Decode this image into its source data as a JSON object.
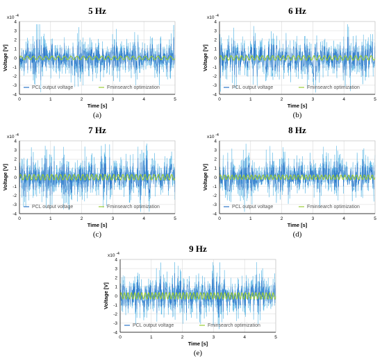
{
  "colors": {
    "signal": "#2a74c8",
    "signal_light": "#38a8e0",
    "fit": "#9acd32",
    "grid": "#d9d9d9"
  },
  "chart_data": [
    {
      "type": "line",
      "caption": "(a)",
      "title": "5 Hz",
      "xlabel": "Time [s]",
      "ylabel": "Voltage [V]",
      "y_multiplier": "x10",
      "y_exponent": "-4",
      "xlim": [
        0,
        5
      ],
      "ylim": [
        -4,
        4
      ],
      "xticks": [
        "0",
        "1",
        "2",
        "3",
        "4",
        "5"
      ],
      "yticks": [
        "4",
        "3",
        "2",
        "1",
        "0",
        "-1",
        "-2",
        "-3",
        "-4"
      ],
      "grid": true,
      "legend_position": "bottom",
      "series": [
        {
          "name": "PCL output voltage",
          "kind": "noise",
          "amplitude": 2.0
        },
        {
          "name": "Fminsearch optimization",
          "kind": "sine",
          "frequency": 5,
          "amplitude": 0.2
        }
      ]
    },
    {
      "type": "line",
      "caption": "(b)",
      "title": "6 Hz",
      "xlabel": "Time [s]",
      "ylabel": "Voltage [V]",
      "y_multiplier": "x10",
      "y_exponent": "-4",
      "xlim": [
        0,
        5
      ],
      "ylim": [
        -4,
        4
      ],
      "xticks": [
        "0",
        "1",
        "2",
        "3",
        "4",
        "5"
      ],
      "yticks": [
        "4",
        "3",
        "2",
        "1",
        "0",
        "-1",
        "-2",
        "-3",
        "-4"
      ],
      "grid": true,
      "legend_position": "bottom",
      "series": [
        {
          "name": "PCL output voltage",
          "kind": "noise",
          "amplitude": 2.2
        },
        {
          "name": "Fminsearch optimization",
          "kind": "sine",
          "frequency": 6,
          "amplitude": 0.25
        }
      ]
    },
    {
      "type": "line",
      "caption": "(c)",
      "title": "7 Hz",
      "xlabel": "Time [s]",
      "ylabel": "Voltage [V]",
      "y_multiplier": "x10",
      "y_exponent": "-4",
      "xlim": [
        0,
        5
      ],
      "ylim": [
        -4,
        4
      ],
      "xticks": [
        "0",
        "1",
        "2",
        "3",
        "4",
        "5"
      ],
      "yticks": [
        "4",
        "3",
        "2",
        "1",
        "0",
        "-1",
        "-2",
        "-3",
        "-4"
      ],
      "grid": true,
      "legend_position": "bottom",
      "series": [
        {
          "name": "PCL output voltage",
          "kind": "noise",
          "amplitude": 2.3
        },
        {
          "name": "Fminsearch optimization",
          "kind": "sine",
          "frequency": 7,
          "amplitude": 0.3
        }
      ]
    },
    {
      "type": "line",
      "caption": "(d)",
      "title": "8 Hz",
      "xlabel": "Time [s]",
      "ylabel": "Voltage [V]",
      "y_multiplier": "x10",
      "y_exponent": "-4",
      "xlim": [
        0,
        5
      ],
      "ylim": [
        -4,
        4
      ],
      "xticks": [
        "0",
        "1",
        "2",
        "3",
        "4",
        "5"
      ],
      "yticks": [
        "4",
        "3",
        "2",
        "1",
        "0",
        "-1",
        "-2",
        "-3",
        "-4"
      ],
      "grid": true,
      "legend_position": "bottom",
      "series": [
        {
          "name": "PCL output voltage",
          "kind": "noise",
          "amplitude": 2.1
        },
        {
          "name": "Fminsearch optimization",
          "kind": "sine",
          "frequency": 8,
          "amplitude": 0.25
        }
      ]
    },
    {
      "type": "line",
      "caption": "(e)",
      "title": "9 Hz",
      "xlabel": "Time [s]",
      "ylabel": "Voltage [V]",
      "y_multiplier": "x10",
      "y_exponent": "-4",
      "xlim": [
        0,
        5
      ],
      "ylim": [
        -4,
        4
      ],
      "xticks": [
        "0",
        "1",
        "2",
        "3",
        "4",
        "5"
      ],
      "yticks": [
        "4",
        "3",
        "2",
        "1",
        "0",
        "-1",
        "-2",
        "-3",
        "-4"
      ],
      "grid": true,
      "legend_position": "bottom",
      "series": [
        {
          "name": "PCL output voltage",
          "kind": "noise",
          "amplitude": 2.2
        },
        {
          "name": "Fminsearch optimization",
          "kind": "sine",
          "frequency": 9,
          "amplitude": 0.35
        }
      ]
    }
  ]
}
